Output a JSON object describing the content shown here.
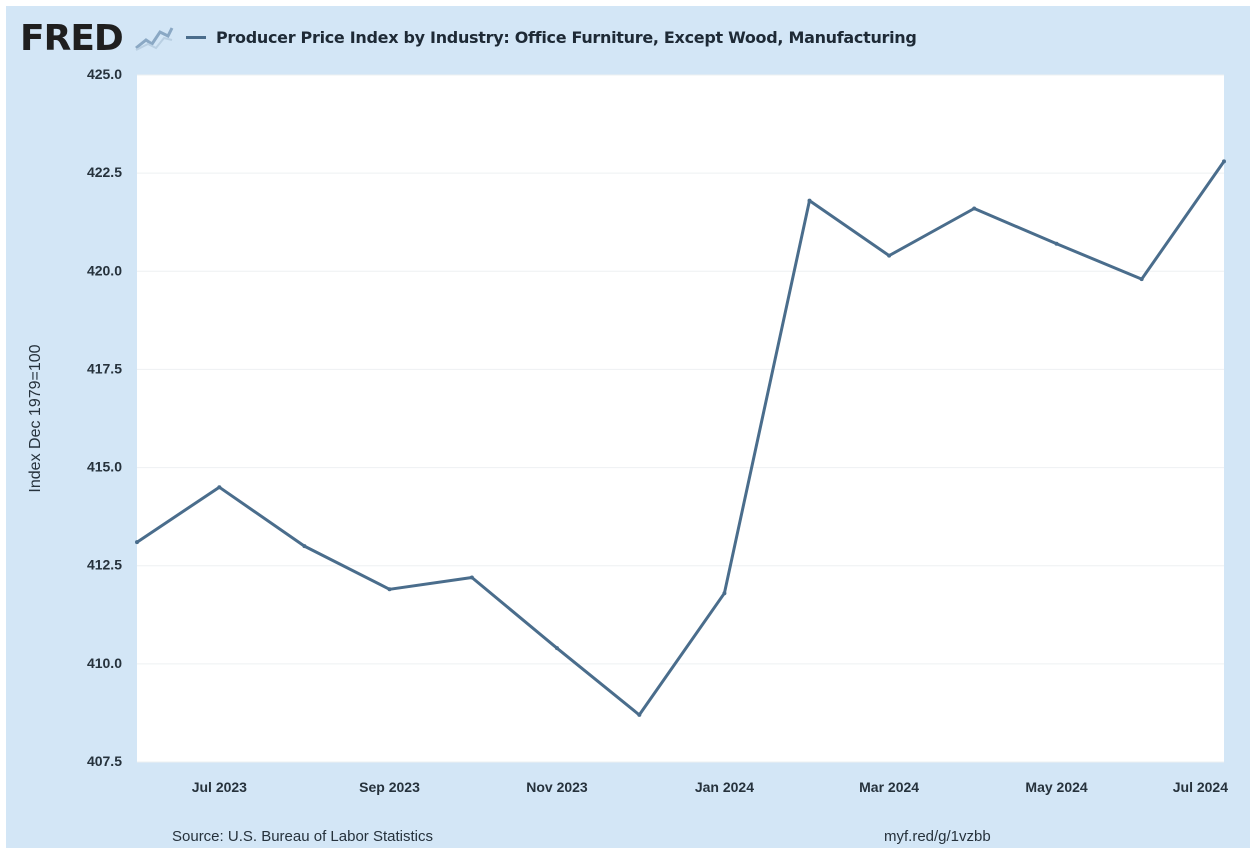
{
  "header": {
    "logo": "FRED",
    "logo_icon": "chart-line-icon",
    "legend_label": "Producer Price Index by Industry: Office Furniture, Except Wood, Manufacturing"
  },
  "footer": {
    "source": "Source: U.S. Bureau of Labor Statistics",
    "link": "myf.red/g/1vzbb"
  },
  "colors": {
    "frame": "#d3e6f6",
    "plot": "#ffffff",
    "line": "#4a6d8c"
  },
  "chart_data": {
    "type": "line",
    "title": "",
    "ylabel": "Index Dec 1979=100",
    "xlabel": "",
    "x": [
      "2023-06-01",
      "2023-07-01",
      "2023-08-01",
      "2023-09-01",
      "2023-10-01",
      "2023-11-01",
      "2023-12-01",
      "2024-01-01",
      "2024-02-01",
      "2024-03-01",
      "2024-04-01",
      "2024-05-01",
      "2024-06-01",
      "2024-07-01"
    ],
    "series": [
      {
        "name": "Producer Price Index by Industry: Office Furniture, Except Wood, Manufacturing",
        "values": [
          413.1,
          414.5,
          413.0,
          411.9,
          412.2,
          410.4,
          408.7,
          411.8,
          421.8,
          420.4,
          421.6,
          420.7,
          419.8,
          422.8
        ]
      }
    ],
    "ylim": [
      407.5,
      425.0
    ],
    "yticks": [
      "407.5",
      "410.0",
      "412.5",
      "415.0",
      "417.5",
      "420.0",
      "422.5",
      "425.0"
    ],
    "xticks": [
      {
        "label": "Jul 2023",
        "date": "2023-07-01"
      },
      {
        "label": "Sep 2023",
        "date": "2023-09-01"
      },
      {
        "label": "Nov 2023",
        "date": "2023-11-01"
      },
      {
        "label": "Jan 2024",
        "date": "2024-01-01"
      },
      {
        "label": "Mar 2024",
        "date": "2024-03-01"
      },
      {
        "label": "May 2024",
        "date": "2024-05-01"
      },
      {
        "label": "Jul 2024",
        "date": "2024-07-01"
      }
    ],
    "grid": true,
    "legend": "top-left"
  }
}
